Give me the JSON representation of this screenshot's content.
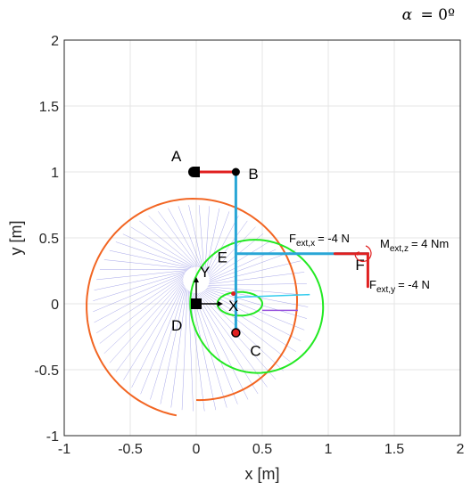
{
  "chart_data": {
    "type": "line",
    "title": "α = 0º",
    "title_symbol": "α",
    "title_value": "= 0º",
    "xlabel": "x [m]",
    "ylabel": "y [m]",
    "xlim": [
      -1,
      2
    ],
    "ylim": [
      -1,
      2
    ],
    "xticks": [
      -1,
      -0.5,
      0,
      0.5,
      1,
      1.5,
      2
    ],
    "xtick_labels": [
      "-1",
      "-0.5",
      "0",
      "0.5",
      "1",
      "1.5",
      "2"
    ],
    "yticks": [
      -1,
      -0.5,
      0,
      0.5,
      1,
      1.5,
      2
    ],
    "ytick_labels": [
      "-1",
      "-0.5",
      "0",
      "0.5",
      "1",
      "1.5",
      "2"
    ],
    "grid": true,
    "points": [
      {
        "label": "A",
        "x": 0.0,
        "y": 1.0
      },
      {
        "label": "B",
        "x": 0.3,
        "y": 1.0
      },
      {
        "label": "C",
        "x": 0.3,
        "y": -0.22
      },
      {
        "label": "D",
        "x": 0.0,
        "y": 0.0
      },
      {
        "label": "E",
        "x": 0.2,
        "y": 0.07
      },
      {
        "label": "F",
        "x": 1.3,
        "y": 0.38
      }
    ],
    "frame_labels": [
      "X",
      "Y"
    ],
    "annotations": {
      "fx_main": "F",
      "fx_sub": "ext,x",
      "fx_value": "= -4 N",
      "fy_main": "F",
      "fy_sub": "ext,y",
      "fy_value": "= -4 N",
      "mz_main": "M",
      "mz_sub": "ext,z",
      "mz_value": "= 4 Nm"
    },
    "curves": [
      {
        "name": "orange",
        "color": "#f26522",
        "center": [
          0.0,
          0.0
        ],
        "r_start": 0.73,
        "r_end": 0.86,
        "theta_start_deg": 0,
        "theta_end_deg": 350
      },
      {
        "name": "green",
        "color": "#22e922",
        "center": [
          0.28,
          0.0
        ],
        "r_outer": 0.64,
        "r_inner": 0.12
      },
      {
        "name": "cyan",
        "color": "#33ccee",
        "points": [
          [
            0.3,
            0.05
          ],
          [
            0.86,
            0.07
          ]
        ]
      },
      {
        "name": "purple",
        "color": "#9955dd",
        "points": [
          [
            0.5,
            -0.05
          ],
          [
            0.77,
            -0.05
          ]
        ]
      }
    ],
    "links": [
      {
        "name": "AB",
        "color": "#e02020",
        "points": [
          [
            0.0,
            1.0
          ],
          [
            0.3,
            1.0
          ]
        ]
      },
      {
        "name": "BC",
        "color": "#29a6d6",
        "points": [
          [
            0.3,
            1.0
          ],
          [
            0.3,
            -0.22
          ]
        ]
      },
      {
        "name": "EF",
        "color": "#29a6d6",
        "points": [
          [
            0.3,
            0.38
          ],
          [
            1.3,
            0.38
          ]
        ]
      },
      {
        "name": "F-red",
        "color": "#e02020",
        "points": [
          [
            1.05,
            0.38
          ],
          [
            1.3,
            0.38
          ],
          [
            1.3,
            0.13
          ]
        ]
      }
    ],
    "blue_fan": {
      "color": "#3333cc",
      "count": 60
    }
  }
}
